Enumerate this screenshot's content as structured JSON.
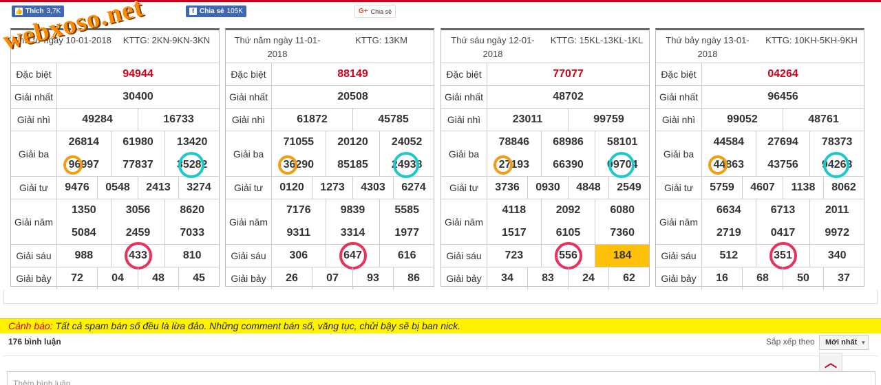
{
  "social": {
    "like_label": "Thích",
    "like_count": "3,7K",
    "share_label": "Chia sẻ",
    "share_count": "105K",
    "gplus_label": "Chia sẻ",
    "like_icon": "thumbs-up-icon",
    "share_icon": "facebook-icon",
    "gplus_icon": "google-plus-icon"
  },
  "watermark": "webxoso.net",
  "cards": [
    {
      "date": "Thứ tư ngày 10-01-2018",
      "kttg": "KTTG: 2KN-9KN-3KN",
      "db": "94944",
      "g1": "30400",
      "g2": [
        "49284",
        "16733"
      ],
      "g3a": [
        "26814",
        "61980",
        "13420"
      ],
      "g3b": [
        "96997",
        "77837",
        "35282"
      ],
      "g4": [
        "9476",
        "0548",
        "2413",
        "3274"
      ],
      "g5a": [
        "1350",
        "3056",
        "8620"
      ],
      "g5b": [
        "5084",
        "2459",
        "7033"
      ],
      "g6": [
        "988",
        "433",
        "810"
      ],
      "g7": [
        "72",
        "04",
        "48",
        "45"
      ]
    },
    {
      "date": "Thứ năm ngày 11-01-2018",
      "kttg": "KTTG: 13KM",
      "db": "88149",
      "g1": "20508",
      "g2": [
        "61872",
        "45785"
      ],
      "g3a": [
        "71055",
        "20120",
        "24052"
      ],
      "g3b": [
        "36290",
        "85185",
        "24938"
      ],
      "g4": [
        "0120",
        "1273",
        "4303",
        "6274"
      ],
      "g5a": [
        "7176",
        "9839",
        "5585"
      ],
      "g5b": [
        "9311",
        "3314",
        "1977"
      ],
      "g6": [
        "306",
        "647",
        "616"
      ],
      "g7": [
        "26",
        "07",
        "93",
        "86"
      ]
    },
    {
      "date": "Thứ sáu ngày 12-01-2018",
      "kttg": "KTTG: 15KL-13KL-1KL",
      "db": "77077",
      "g1": "48702",
      "g2": [
        "23011",
        "99759"
      ],
      "g3a": [
        "78846",
        "68986",
        "58101"
      ],
      "g3b": [
        "27193",
        "66390",
        "09704"
      ],
      "g4": [
        "3736",
        "0930",
        "4848",
        "2549"
      ],
      "g5a": [
        "4118",
        "2092",
        "6080"
      ],
      "g5b": [
        "1517",
        "6105",
        "7360"
      ],
      "g6": [
        "723",
        "556",
        "184"
      ],
      "g7": [
        "34",
        "83",
        "24",
        "62"
      ]
    },
    {
      "date": "Thứ bảy ngày 13-01-2018",
      "kttg": "KTTG: 10KH-5KH-9KH",
      "db": "04264",
      "g1": "96456",
      "g2": [
        "99052",
        "48761"
      ],
      "g3a": [
        "44584",
        "27694",
        "78373"
      ],
      "g3b": [
        "44863",
        "43756",
        "94263"
      ],
      "g4": [
        "5759",
        "4607",
        "1138",
        "8062"
      ],
      "g5a": [
        "6634",
        "6713",
        "2011"
      ],
      "g5b": [
        "2719",
        "0417",
        "9972"
      ],
      "g6": [
        "512",
        "351",
        "340"
      ],
      "g7": [
        "16",
        "68",
        "50",
        "37"
      ]
    }
  ],
  "labels": {
    "db": "Đặc biệt",
    "g1": "Giải nhất",
    "g2": "Giải nhì",
    "g3": "Giải ba",
    "g4": "Giải tư",
    "g5": "Giải năm",
    "g6": "Giải sáu",
    "g7": "Giải bảy"
  },
  "warning": {
    "label": "Cảnh báo:",
    "text": " Tất cả spam bán số đều là lừa đảo. Những comment bán số, văng tục, chửi bậy sẽ bị ban nick."
  },
  "comments": {
    "count": "176 bình luận",
    "sort_label": "Sắp xếp theo",
    "sort_value": "Mới nhất",
    "placeholder": "Thêm bình luận..."
  },
  "colors": {
    "accent_red": "#d0021b",
    "highlight": "#ffc107",
    "circle_red": "#e8325a",
    "circle_cyan": "#1ec8c8",
    "circle_orange": "#f39c12"
  }
}
